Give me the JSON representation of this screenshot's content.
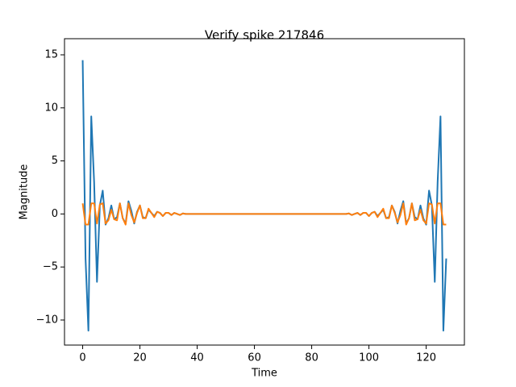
{
  "chart_data": {
    "type": "line",
    "title": "Verify spike 217846",
    "x_label": "Time",
    "y_label": "Magnitude",
    "x": [
      0,
      1,
      2,
      3,
      4,
      5,
      6,
      7,
      8,
      9,
      10,
      11,
      12,
      13,
      14,
      15,
      16,
      17,
      18,
      19,
      20,
      21,
      22,
      23,
      24,
      25,
      26,
      27,
      28,
      29,
      30,
      31,
      32,
      33,
      34,
      35,
      36,
      37,
      38,
      39,
      40,
      41,
      42,
      43,
      44,
      45,
      46,
      47,
      48,
      49,
      50,
      51,
      52,
      53,
      54,
      55,
      56,
      57,
      58,
      59,
      60,
      61,
      62,
      63,
      64,
      65,
      66,
      67,
      68,
      69,
      70,
      71,
      72,
      73,
      74,
      75,
      76,
      77,
      78,
      79,
      80,
      81,
      82,
      83,
      84,
      85,
      86,
      87,
      88,
      89,
      90,
      91,
      92,
      93,
      94,
      95,
      96,
      97,
      98,
      99,
      100,
      101,
      102,
      103,
      104,
      105,
      106,
      107,
      108,
      109,
      110,
      111,
      112,
      113,
      114,
      115,
      116,
      117,
      118,
      119,
      120,
      121,
      122,
      123,
      124,
      125,
      126,
      127
    ],
    "series": [
      {
        "color": "#1f77b4",
        "values": [
          14.5,
          -4.2,
          -11.0,
          9.2,
          3.0,
          -6.4,
          0.8,
          2.2,
          -1.0,
          -0.4,
          0.8,
          -0.5,
          -0.3,
          1.0,
          -0.4,
          -0.9,
          1.2,
          0.3,
          -0.9,
          0.2,
          0.8,
          -0.3,
          -0.4,
          0.4,
          0.1,
          -0.2,
          0.2,
          0.1,
          -0.2,
          0.1,
          0.1,
          -0.1,
          0.1,
          0.0,
          -0.1,
          0.05,
          0,
          0,
          0,
          0,
          0,
          0,
          0,
          0,
          0,
          0,
          0,
          0,
          0,
          0,
          0,
          0,
          0,
          0,
          0,
          0,
          0,
          0,
          0,
          0,
          0,
          0,
          0,
          0,
          0,
          0,
          0,
          0,
          0,
          0,
          0,
          0,
          0,
          0,
          0,
          0,
          0,
          0,
          0,
          0,
          0,
          0,
          0,
          0,
          0,
          0,
          0,
          0,
          0,
          0,
          0,
          0,
          0,
          0.05,
          -0.1,
          0.0,
          0.1,
          -0.1,
          0.1,
          0.1,
          -0.2,
          0.1,
          0.2,
          -0.2,
          0.1,
          0.4,
          -0.4,
          -0.3,
          0.8,
          0.2,
          -0.9,
          0.3,
          1.2,
          -0.9,
          -0.4,
          1.0,
          -0.3,
          -0.5,
          0.8,
          -0.4,
          -1.0,
          2.2,
          0.8,
          -6.4,
          3.0,
          9.2,
          -11.0,
          -4.2
        ]
      },
      {
        "color": "#ff7f0e",
        "values": [
          1.0,
          -1.0,
          -1.0,
          1.0,
          1.0,
          -0.9,
          0.9,
          1.0,
          -0.9,
          -0.6,
          0.4,
          -0.5,
          -0.6,
          1.0,
          -0.4,
          -1.0,
          1.0,
          -0.1,
          -0.8,
          0.1,
          0.8,
          -0.4,
          -0.4,
          0.5,
          0.1,
          -0.3,
          0.2,
          0.1,
          -0.2,
          0.1,
          0.1,
          -0.1,
          0.1,
          0.0,
          -0.1,
          0.05,
          0,
          0,
          0,
          0,
          0,
          0,
          0,
          0,
          0,
          0,
          0,
          0,
          0,
          0,
          0,
          0,
          0,
          0,
          0,
          0,
          0,
          0,
          0,
          0,
          0,
          0,
          0,
          0,
          0,
          0,
          0,
          0,
          0,
          0,
          0,
          0,
          0,
          0,
          0,
          0,
          0,
          0,
          0,
          0,
          0,
          0,
          0,
          0,
          0,
          0,
          0,
          0,
          0,
          0,
          0,
          0,
          0,
          0.05,
          -0.1,
          0.0,
          0.1,
          -0.1,
          0.1,
          0.1,
          -0.2,
          0.1,
          0.2,
          -0.3,
          0.1,
          0.5,
          -0.4,
          -0.4,
          0.8,
          0.1,
          -0.8,
          -0.1,
          1.0,
          -1.0,
          -0.4,
          1.0,
          -0.6,
          -0.5,
          0.4,
          -0.6,
          -0.9,
          1.0,
          0.9,
          -0.9,
          1.0,
          1.0,
          -1.0,
          -1.0
        ]
      }
    ],
    "xlim": [
      -6.35,
      133.35
    ],
    "ylim": [
      -12.36,
      16.52
    ],
    "xticks": [
      0,
      20,
      40,
      60,
      80,
      100,
      120
    ],
    "yticks": [
      {
        "value": -10,
        "label": "−10"
      },
      {
        "value": -5,
        "label": "−5"
      },
      0,
      5,
      10,
      15
    ]
  }
}
